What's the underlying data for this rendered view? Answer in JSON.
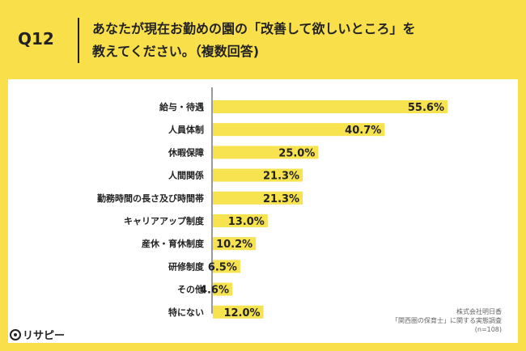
{
  "question": {
    "number": "Q12",
    "title_line1": "あなたが現在お勤めの園の「改善して欲しいところ」を",
    "title_line2": "教えてください。（複数回答)"
  },
  "chart_data": {
    "type": "bar",
    "orientation": "horizontal",
    "categories": [
      "給与・待遇",
      "人員体制",
      "休暇保障",
      "人間関係",
      "勤務時間の長さ及び時間帯",
      "キャリアアップ制度",
      "産休・育休制度",
      "研修制度",
      "その他",
      "特にない"
    ],
    "values": [
      55.6,
      40.7,
      25.0,
      21.3,
      21.3,
      13.0,
      10.2,
      6.5,
      4.6,
      12.0
    ],
    "value_labels": [
      "55.6%",
      "40.7%",
      "25.0%",
      "21.3%",
      "21.3%",
      "13.0%",
      "10.2%",
      "6.5%",
      "4.6%",
      "12.0%"
    ],
    "xlim": [
      0,
      60
    ],
    "bar_color": "#f7e34f",
    "grid": false,
    "title": "",
    "xlabel": "",
    "ylabel": ""
  },
  "source": {
    "line1": "株式会社明日香",
    "line2": "「関西圏の保育士」に関する実態調査",
    "line3": "(n=108)"
  },
  "logo": {
    "text": "リサピー"
  },
  "colors": {
    "background": "#f9e04b",
    "card": "#ffffff",
    "bar": "#f7e34f"
  }
}
